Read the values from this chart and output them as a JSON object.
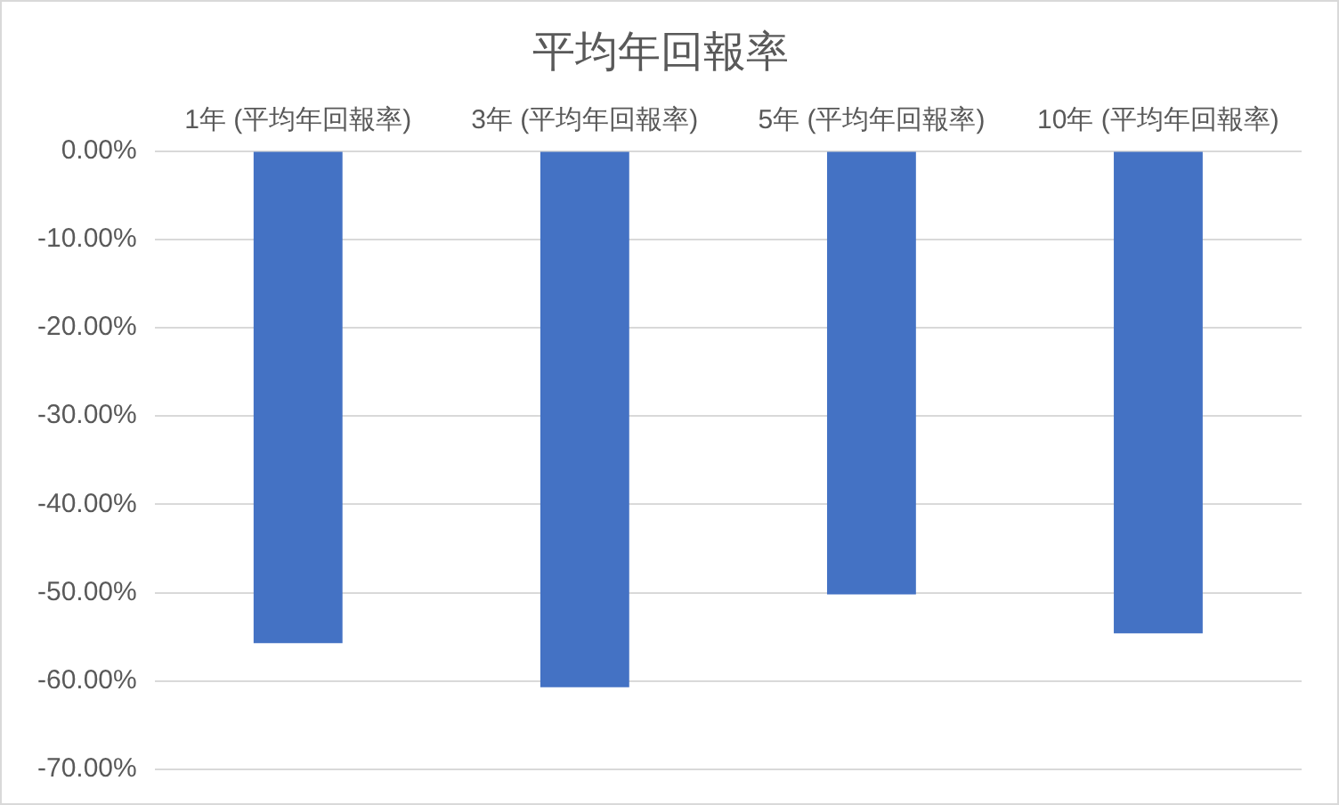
{
  "chart_data": {
    "type": "bar",
    "title": "平均年回報率",
    "categories": [
      "1年 (平均年回報率)",
      "3年 (平均年回報率)",
      "5年 (平均年回報率)",
      "10年 (平均年回報率)"
    ],
    "values": [
      -55.7,
      -60.7,
      -50.2,
      -54.6
    ],
    "color": "#4472c4",
    "ylim": [
      -70,
      0
    ],
    "yticks": [
      {
        "value": 0,
        "label": "0.00%"
      },
      {
        "value": -10,
        "label": "-10.00%"
      },
      {
        "value": -20,
        "label": "-20.00%"
      },
      {
        "value": -30,
        "label": "-30.00%"
      },
      {
        "value": -40,
        "label": "-40.00%"
      },
      {
        "value": -50,
        "label": "-50.00%"
      },
      {
        "value": -60,
        "label": "-60.00%"
      },
      {
        "value": -70,
        "label": "-70.00%"
      }
    ],
    "grid": "y",
    "legend": false
  }
}
